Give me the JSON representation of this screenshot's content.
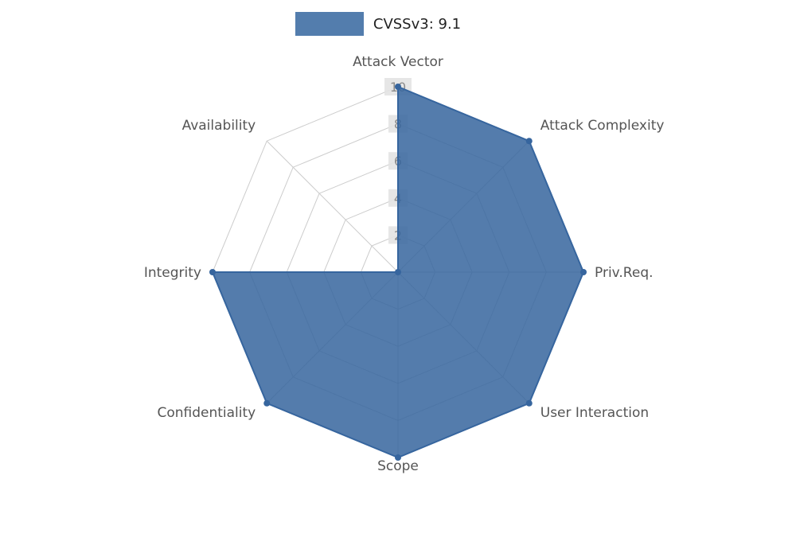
{
  "legend": {
    "swatch_color": "#537dad",
    "label": "CVSSv3: 9.1"
  },
  "chart_data": {
    "type": "radar",
    "title": "CVSSv3: 9.1",
    "categories": [
      "Attack Vector",
      "Attack Complexity",
      "Priv.Req.",
      "User Interaction",
      "Scope",
      "Confidentiality",
      "Integrity",
      "Availability"
    ],
    "series": [
      {
        "name": "CVSSv3: 9.1",
        "values": [
          10,
          10,
          10,
          10,
          10,
          10,
          10,
          0
        ]
      }
    ],
    "ticks": [
      2,
      4,
      6,
      8,
      10
    ],
    "axis_range": [
      0,
      10
    ],
    "grid": true,
    "legend_position": "top-center",
    "colors": {
      "fill": "#36659e",
      "fill_opacity": 0.85,
      "stroke": "#36659e",
      "grid": "#cccccc",
      "tick_text": "#8c8c8c",
      "tick_bg": "#e3e3e3",
      "label": "#555555"
    }
  }
}
